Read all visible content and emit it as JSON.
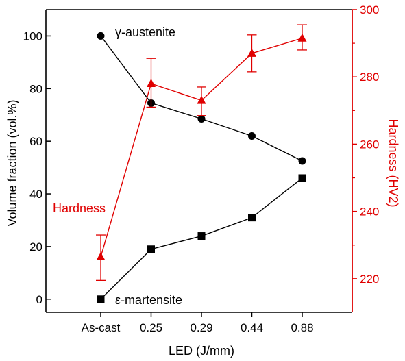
{
  "chart_data": {
    "type": "line",
    "categories": [
      "As-cast",
      "0.25",
      "0.29",
      "0.44",
      "0.88"
    ],
    "xlabel": "LED (J/mm)",
    "ylabel": "Volume fraction (vol.%)",
    "ylim": [
      -5,
      110
    ],
    "yticks": [
      0,
      20,
      40,
      60,
      80,
      100
    ],
    "y2label": "Hardness (HV2)",
    "y2lim": [
      210,
      300
    ],
    "y2ticks": [
      220,
      240,
      260,
      280,
      300
    ],
    "grid": false,
    "series": [
      {
        "name": "γ-austenite",
        "axis": "left",
        "marker": "circle",
        "color": "#000000",
        "values": [
          100,
          74.5,
          68.5,
          62,
          52.5
        ]
      },
      {
        "name": "ε-martensite",
        "axis": "left",
        "marker": "square",
        "color": "#000000",
        "values": [
          0,
          19,
          24,
          31,
          46
        ]
      },
      {
        "name": "Hardness",
        "axis": "right",
        "marker": "triangle",
        "color": "#e00000",
        "values": [
          226.5,
          278,
          273,
          287,
          291.5
        ],
        "error_low": [
          219.5,
          271,
          268.5,
          281.5,
          288
        ],
        "error_high": [
          233,
          285.5,
          277,
          292.5,
          295.5
        ]
      }
    ]
  }
}
